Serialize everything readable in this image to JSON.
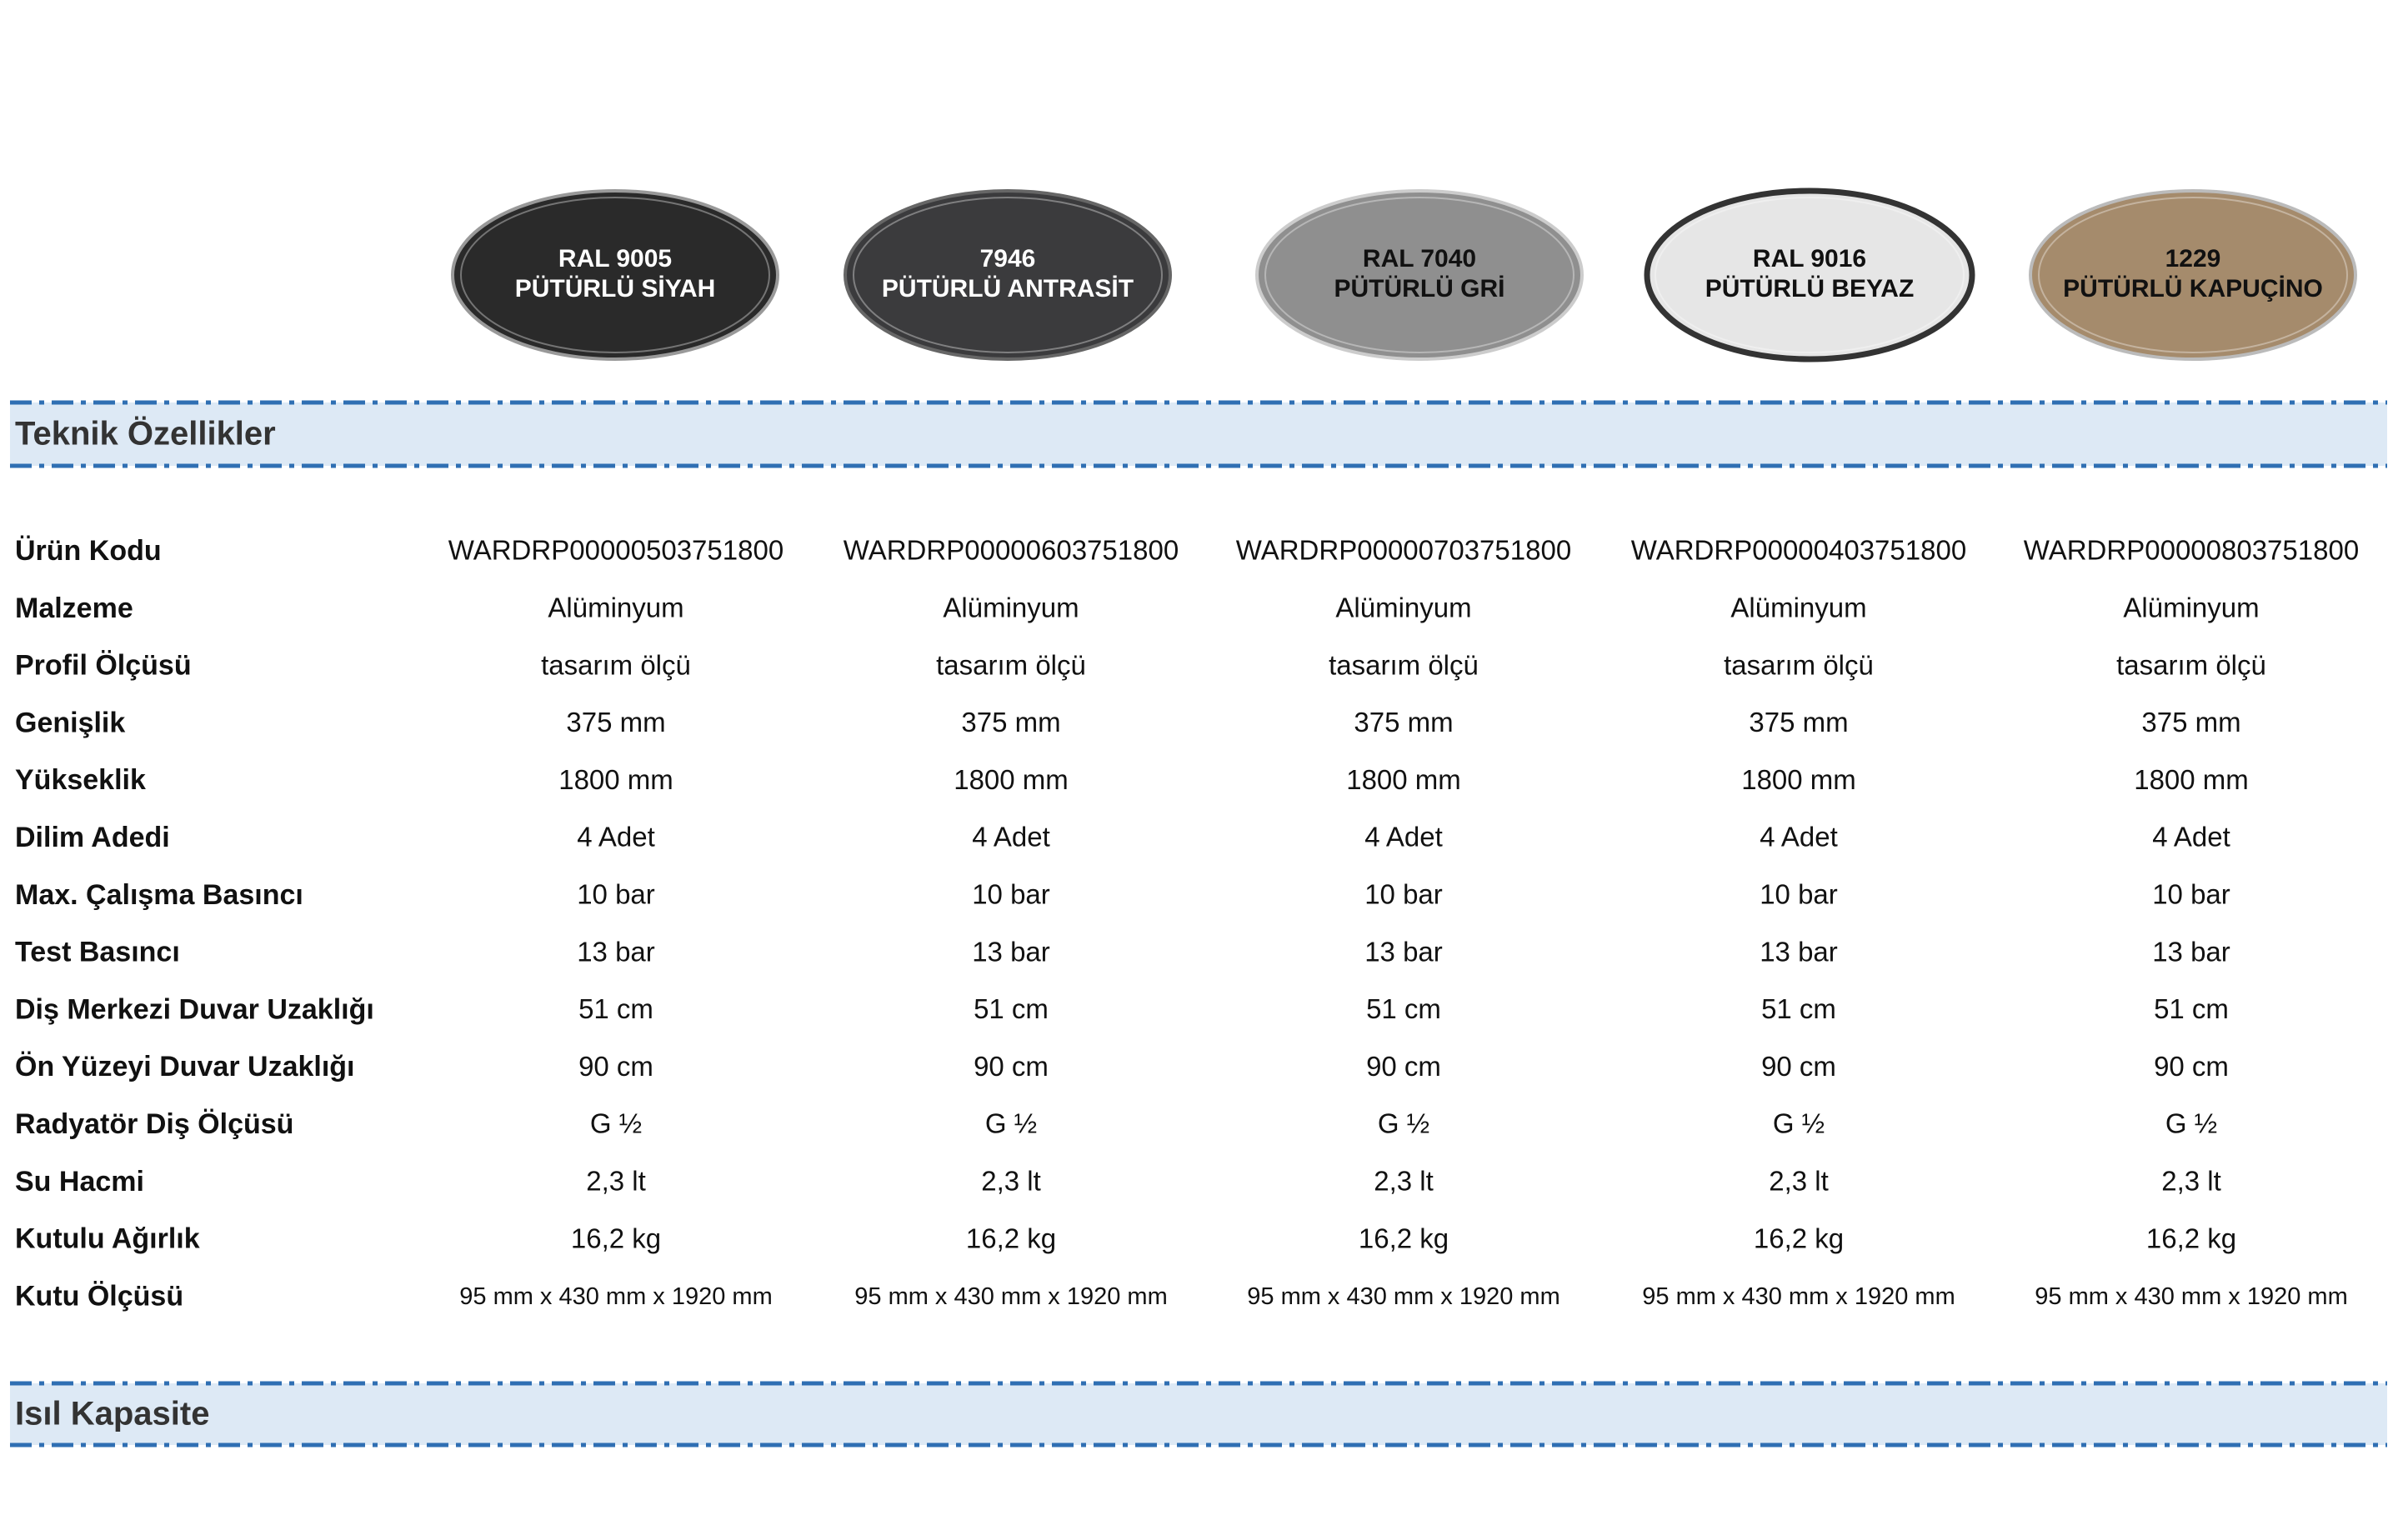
{
  "swatches": [
    {
      "line1": "RAL 9005",
      "line2": "PÜTÜRLÜ SİYAH"
    },
    {
      "line1": "7946",
      "line2": "PÜTÜRLÜ ANTRASİT"
    },
    {
      "line1": "RAL 7040",
      "line2": "PÜTÜRLÜ GRİ"
    },
    {
      "line1": "RAL 9016",
      "line2": "PÜTÜRLÜ BEYAZ"
    },
    {
      "line1": "1229",
      "line2": "PÜTÜRLÜ KAPUÇİNO"
    }
  ],
  "sections": [
    "Teknik Özellikler",
    "Isıl Kapasite"
  ],
  "table": {
    "rows": [
      {
        "label": "Ürün Kodu",
        "values": [
          "WARDRP00000503751800",
          "WARDRP00000603751800",
          "WARDRP00000703751800",
          "WARDRP00000403751800",
          "WARDRP00000803751800"
        ]
      },
      {
        "label": "Malzeme",
        "values": [
          "Alüminyum",
          "Alüminyum",
          "Alüminyum",
          "Alüminyum",
          "Alüminyum"
        ]
      },
      {
        "label": "Profil Ölçüsü",
        "values": [
          "tasarım ölçü",
          "tasarım ölçü",
          "tasarım ölçü",
          "tasarım ölçü",
          "tasarım ölçü"
        ]
      },
      {
        "label": "Genişlik",
        "values": [
          "375 mm",
          "375 mm",
          "375 mm",
          "375 mm",
          "375 mm"
        ]
      },
      {
        "label": "Yükseklik",
        "values": [
          "1800 mm",
          "1800 mm",
          "1800 mm",
          "1800 mm",
          "1800 mm"
        ]
      },
      {
        "label": "Dilim Adedi",
        "values": [
          "4 Adet",
          "4 Adet",
          "4 Adet",
          "4 Adet",
          "4 Adet"
        ]
      },
      {
        "label": "Max. Çalışma Basıncı",
        "values": [
          "10 bar",
          "10 bar",
          "10 bar",
          "10 bar",
          "10 bar"
        ]
      },
      {
        "label": "Test Basıncı",
        "values": [
          "13 bar",
          "13 bar",
          "13 bar",
          "13 bar",
          "13 bar"
        ]
      },
      {
        "label": "Diş Merkezi Duvar Uzaklığı",
        "values": [
          "51 cm",
          "51 cm",
          "51 cm",
          "51 cm",
          "51 cm"
        ]
      },
      {
        "label": "Ön Yüzeyi Duvar Uzaklığı",
        "values": [
          "90 cm",
          "90 cm",
          "90 cm",
          "90 cm",
          "90 cm"
        ]
      },
      {
        "label": "Radyatör Diş Ölçüsü",
        "values": [
          "G ½",
          "G ½",
          "G ½",
          "G ½",
          "G ½"
        ]
      },
      {
        "label": "Su Hacmi",
        "values": [
          "2,3 lt",
          "2,3 lt",
          "2,3 lt",
          "2,3 lt",
          "2,3 lt"
        ]
      },
      {
        "label": "Kutulu Ağırlık",
        "values": [
          "16,2 kg",
          "16,2 kg",
          "16,2 kg",
          "16,2 kg",
          "16,2 kg"
        ]
      },
      {
        "label": "Kutu Ölçüsü",
        "values": [
          "95 mm x 430 mm x 1920 mm",
          "95 mm x 430 mm x 1920 mm",
          "95 mm x 430 mm x 1920 mm",
          "95 mm x 430 mm x 1920 mm",
          "95 mm x 430 mm x 1920 mm"
        ]
      }
    ]
  }
}
